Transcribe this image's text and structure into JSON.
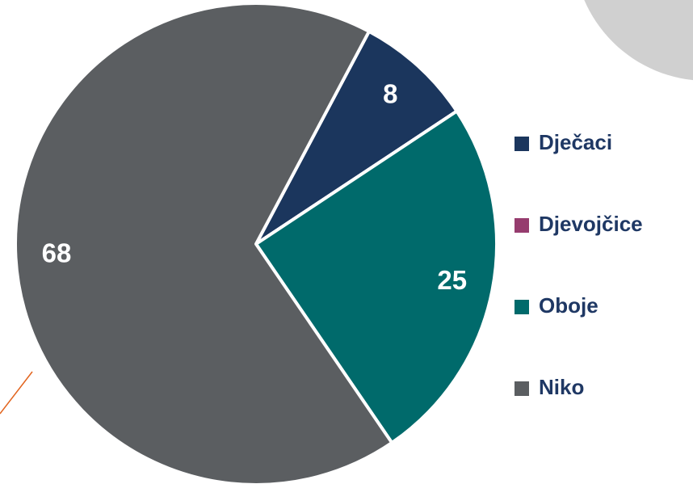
{
  "chart_data": {
    "type": "pie",
    "categories": [
      "Dječaci",
      "Djevojčice",
      "Oboje",
      "Niko"
    ],
    "values": [
      8,
      0,
      25,
      68
    ],
    "colors": [
      "#1b365d",
      "#963c6e",
      "#006a6b",
      "#5b5e61"
    ],
    "legend": "right"
  }
}
